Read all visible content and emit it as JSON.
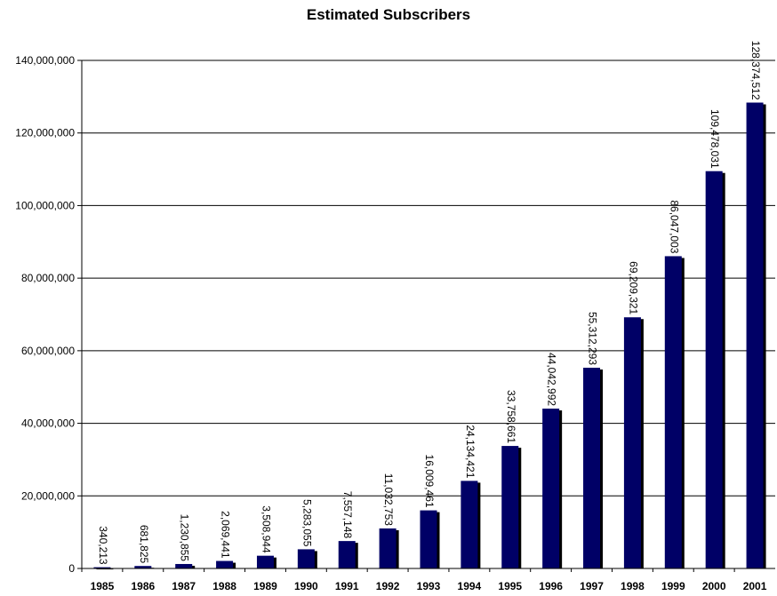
{
  "chart_data": {
    "type": "bar",
    "title": "Estimated Subscribers",
    "xlabel": "",
    "ylabel": "",
    "categories": [
      "1985",
      "1986",
      "1987",
      "1988",
      "1989",
      "1990",
      "1991",
      "1992",
      "1993",
      "1994",
      "1995",
      "1996",
      "1997",
      "1998",
      "1999",
      "2000",
      "2001"
    ],
    "values": [
      340213,
      681825,
      1230855,
      2069441,
      3508944,
      5283055,
      7557148,
      11032753,
      16009461,
      24134421,
      33758661,
      44042992,
      55312293,
      69209321,
      86047003,
      109478031,
      128374512
    ],
    "value_labels": [
      "340,213",
      "681,825",
      "1,230,855",
      "2,069,441",
      "3,508,944",
      "5,283,055",
      "7,557,148",
      "11,032,753",
      "16,009,461",
      "24,134,421",
      "33,758,661",
      "44,042,992",
      "55,312,293",
      "69,209,321",
      "86,047,003",
      "109,478,031",
      "128,374,512"
    ],
    "ylim": [
      0,
      140000000
    ],
    "yticks": [
      0,
      20000000,
      40000000,
      60000000,
      80000000,
      100000000,
      120000000,
      140000000
    ],
    "ytick_labels": [
      "0",
      "20,000,000",
      "40,000,000",
      "60,000,000",
      "80,000,000",
      "100,000,000",
      "120,000,000",
      "140,000,000"
    ],
    "grid": true,
    "bar_color": "#000066",
    "shadow_color": "#000000"
  }
}
